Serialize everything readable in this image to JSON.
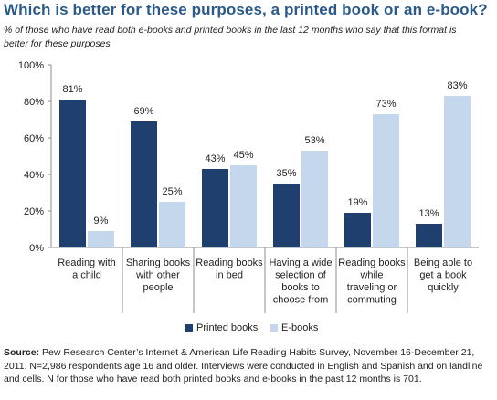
{
  "title": "Which is better for these purposes, a printed book or an e-book?",
  "subtitle": "% of those who have read both e-books and printed books in the last 12 months who say that this format is better for these purposes",
  "source": {
    "label": "Source:",
    "text": " Pew Research Center’s Internet & American Life Reading Habits Survey, November 16-December 21, 2011. N=2,986 respondents age 16 and older. Interviews were conducted in English and Spanish and on landline and cells. N for those who have read both printed books and e-books in the past 12 months is 701."
  },
  "chart_data": {
    "type": "bar",
    "categories": [
      [
        "Reading with",
        "a child"
      ],
      [
        "Sharing books",
        "with other",
        "people"
      ],
      [
        "Reading books",
        "in bed"
      ],
      [
        "Having a wide",
        "selection of",
        "books to",
        "choose from"
      ],
      [
        "Reading books",
        "while",
        "traveling or",
        "commuting"
      ],
      [
        "Being able to",
        "get a book",
        "quickly"
      ]
    ],
    "series": [
      {
        "name": "Printed books",
        "values": [
          81,
          69,
          43,
          35,
          19,
          13
        ],
        "color": "#1f3f6e"
      },
      {
        "name": "E-books",
        "values": [
          9,
          25,
          45,
          53,
          73,
          83
        ],
        "color": "#c5d7ec"
      }
    ],
    "ylim": [
      0,
      100
    ],
    "yticks": [
      "0%",
      "20%",
      "40%",
      "60%",
      "80%",
      "100%"
    ],
    "value_suffix": "%",
    "grid": false,
    "legend_position": "bottom"
  },
  "colors": {
    "title": "#2b5a8a",
    "printed": "#1f3f6e",
    "ebook": "#c5d7ec",
    "axis": "#8c8c8c"
  }
}
